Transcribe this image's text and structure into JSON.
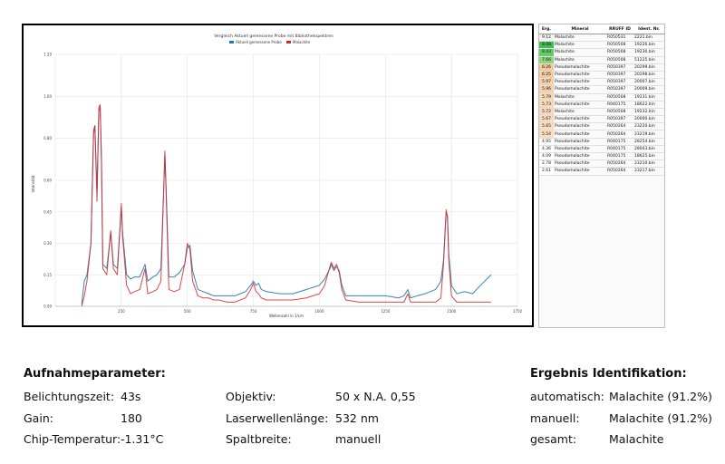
{
  "chart_data": {
    "type": "line",
    "title": "Vergleich Aktuell gemessene Probe mit Bibliothekspektren",
    "xlabel": "Wellenzahl in 1/cm",
    "ylabel": "Intensität",
    "xlim": [
      0,
      1750
    ],
    "ylim": [
      0,
      1.2
    ],
    "xticks": [
      0,
      250,
      500,
      750,
      1000,
      1250,
      1500,
      1750
    ],
    "yticks": [
      0,
      0.15,
      0.3,
      0.45,
      0.6,
      0.8,
      1.0,
      1.2
    ],
    "ytick_labels": [
      "0.00",
      "0.15",
      "0.30",
      "0.45",
      "0.60",
      "0.80",
      "1.00",
      "1.20"
    ],
    "grid": true,
    "legend_position": "top-center",
    "series": [
      {
        "name": "Aktuell gemessene Probe",
        "color": "#1f77b4",
        "points": [
          [
            100,
            0.01
          ],
          [
            110,
            0.12
          ],
          [
            120,
            0.15
          ],
          [
            135,
            0.3
          ],
          [
            145,
            0.82
          ],
          [
            150,
            0.86
          ],
          [
            158,
            0.55
          ],
          [
            165,
            0.93
          ],
          [
            170,
            0.95
          ],
          [
            175,
            0.7
          ],
          [
            180,
            0.2
          ],
          [
            195,
            0.18
          ],
          [
            210,
            0.35
          ],
          [
            220,
            0.2
          ],
          [
            235,
            0.18
          ],
          [
            250,
            0.47
          ],
          [
            255,
            0.35
          ],
          [
            270,
            0.15
          ],
          [
            285,
            0.13
          ],
          [
            300,
            0.14
          ],
          [
            320,
            0.14
          ],
          [
            340,
            0.2
          ],
          [
            350,
            0.12
          ],
          [
            370,
            0.14
          ],
          [
            385,
            0.15
          ],
          [
            400,
            0.18
          ],
          [
            415,
            0.72
          ],
          [
            420,
            0.55
          ],
          [
            430,
            0.14
          ],
          [
            450,
            0.14
          ],
          [
            470,
            0.16
          ],
          [
            490,
            0.2
          ],
          [
            500,
            0.28
          ],
          [
            510,
            0.29
          ],
          [
            520,
            0.17
          ],
          [
            540,
            0.08
          ],
          [
            560,
            0.07
          ],
          [
            580,
            0.06
          ],
          [
            600,
            0.05
          ],
          [
            620,
            0.05
          ],
          [
            650,
            0.05
          ],
          [
            680,
            0.05
          ],
          [
            700,
            0.06
          ],
          [
            720,
            0.07
          ],
          [
            740,
            0.1
          ],
          [
            750,
            0.12
          ],
          [
            760,
            0.1
          ],
          [
            770,
            0.11
          ],
          [
            780,
            0.08
          ],
          [
            800,
            0.07
          ],
          [
            850,
            0.06
          ],
          [
            900,
            0.06
          ],
          [
            950,
            0.08
          ],
          [
            1000,
            0.1
          ],
          [
            1020,
            0.13
          ],
          [
            1040,
            0.18
          ],
          [
            1045,
            0.2
          ],
          [
            1055,
            0.17
          ],
          [
            1065,
            0.19
          ],
          [
            1075,
            0.17
          ],
          [
            1085,
            0.1
          ],
          [
            1100,
            0.05
          ],
          [
            1150,
            0.05
          ],
          [
            1200,
            0.05
          ],
          [
            1250,
            0.05
          ],
          [
            1300,
            0.04
          ],
          [
            1320,
            0.05
          ],
          [
            1335,
            0.08
          ],
          [
            1345,
            0.04
          ],
          [
            1370,
            0.05
          ],
          [
            1400,
            0.06
          ],
          [
            1420,
            0.07
          ],
          [
            1440,
            0.08
          ],
          [
            1460,
            0.12
          ],
          [
            1470,
            0.22
          ],
          [
            1480,
            0.45
          ],
          [
            1485,
            0.43
          ],
          [
            1490,
            0.25
          ],
          [
            1500,
            0.1
          ],
          [
            1520,
            0.06
          ],
          [
            1550,
            0.07
          ],
          [
            1580,
            0.06
          ],
          [
            1610,
            0.1
          ],
          [
            1650,
            0.15
          ]
        ]
      },
      {
        "name": "Malachite",
        "color": "#d62728",
        "points": [
          [
            100,
            0.0
          ],
          [
            110,
            0.05
          ],
          [
            120,
            0.12
          ],
          [
            135,
            0.3
          ],
          [
            145,
            0.84
          ],
          [
            150,
            0.86
          ],
          [
            158,
            0.5
          ],
          [
            165,
            0.95
          ],
          [
            170,
            0.96
          ],
          [
            175,
            0.68
          ],
          [
            180,
            0.18
          ],
          [
            195,
            0.15
          ],
          [
            210,
            0.36
          ],
          [
            220,
            0.18
          ],
          [
            235,
            0.15
          ],
          [
            250,
            0.49
          ],
          [
            255,
            0.33
          ],
          [
            270,
            0.1
          ],
          [
            285,
            0.06
          ],
          [
            300,
            0.07
          ],
          [
            320,
            0.08
          ],
          [
            340,
            0.18
          ],
          [
            350,
            0.06
          ],
          [
            370,
            0.07
          ],
          [
            385,
            0.08
          ],
          [
            400,
            0.12
          ],
          [
            415,
            0.74
          ],
          [
            420,
            0.53
          ],
          [
            430,
            0.08
          ],
          [
            450,
            0.07
          ],
          [
            470,
            0.08
          ],
          [
            490,
            0.2
          ],
          [
            500,
            0.3
          ],
          [
            510,
            0.27
          ],
          [
            520,
            0.12
          ],
          [
            540,
            0.05
          ],
          [
            560,
            0.04
          ],
          [
            580,
            0.04
          ],
          [
            600,
            0.03
          ],
          [
            620,
            0.03
          ],
          [
            650,
            0.02
          ],
          [
            680,
            0.02
          ],
          [
            700,
            0.03
          ],
          [
            720,
            0.04
          ],
          [
            740,
            0.08
          ],
          [
            750,
            0.11
          ],
          [
            760,
            0.07
          ],
          [
            770,
            0.06
          ],
          [
            780,
            0.04
          ],
          [
            800,
            0.03
          ],
          [
            850,
            0.03
          ],
          [
            900,
            0.03
          ],
          [
            950,
            0.04
          ],
          [
            1000,
            0.06
          ],
          [
            1020,
            0.1
          ],
          [
            1040,
            0.19
          ],
          [
            1045,
            0.21
          ],
          [
            1055,
            0.18
          ],
          [
            1065,
            0.2
          ],
          [
            1075,
            0.16
          ],
          [
            1085,
            0.08
          ],
          [
            1100,
            0.03
          ],
          [
            1150,
            0.02
          ],
          [
            1200,
            0.02
          ],
          [
            1250,
            0.02
          ],
          [
            1300,
            0.02
          ],
          [
            1320,
            0.02
          ],
          [
            1335,
            0.06
          ],
          [
            1345,
            0.02
          ],
          [
            1370,
            0.02
          ],
          [
            1400,
            0.02
          ],
          [
            1420,
            0.02
          ],
          [
            1440,
            0.02
          ],
          [
            1460,
            0.04
          ],
          [
            1470,
            0.2
          ],
          [
            1480,
            0.46
          ],
          [
            1485,
            0.42
          ],
          [
            1490,
            0.22
          ],
          [
            1500,
            0.05
          ],
          [
            1520,
            0.02
          ],
          [
            1550,
            0.02
          ],
          [
            1580,
            0.02
          ],
          [
            1610,
            0.02
          ],
          [
            1650,
            0.02
          ]
        ]
      }
    ]
  },
  "hits_table": {
    "columns": [
      "Erg.",
      "Mineral",
      "RRUFF ID",
      "Ident. Nr."
    ],
    "rows": [
      {
        "score": "9.12",
        "mineral": "Malachite",
        "rruff_id": "R050531",
        "ident": "2221.bin",
        "color": "#f2f2f2"
      },
      {
        "score": "8.08",
        "mineral": "Malachite",
        "rruff_id": "R050508",
        "ident": "19226.bin",
        "color": "#3fbf4f"
      },
      {
        "score": "8.43",
        "mineral": "Malachite",
        "rruff_id": "R050508",
        "ident": "19230.bin",
        "color": "#63cc66"
      },
      {
        "score": "7.66",
        "mineral": "Malachite",
        "rruff_id": "R050508",
        "ident": "51225.bin",
        "color": "#8fd67a"
      },
      {
        "score": "6.26",
        "mineral": "Pseudomalachite",
        "rruff_id": "R050397",
        "ident": "20299.bin",
        "color": "#f6c79a"
      },
      {
        "score": "6.25",
        "mineral": "Pseudomalachite",
        "rruff_id": "R050397",
        "ident": "20298.bin",
        "color": "#f6c99e"
      },
      {
        "score": "5.97",
        "mineral": "Pseudomalachite",
        "rruff_id": "R050397",
        "ident": "20007.bin",
        "color": "#f7cfa8"
      },
      {
        "score": "5.96",
        "mineral": "Pseudomalachite",
        "rruff_id": "R050397",
        "ident": "20009.bin",
        "color": "#f7d1ac"
      },
      {
        "score": "5.79",
        "mineral": "Malachite",
        "rruff_id": "R050508",
        "ident": "19231.bin",
        "color": "#f8d5b3"
      },
      {
        "score": "5.73",
        "mineral": "Pseudomalachite",
        "rruff_id": "R040175",
        "ident": "18622.bin",
        "color": "#f8d7b7"
      },
      {
        "score": "5.72",
        "mineral": "Malachite",
        "rruff_id": "R050508",
        "ident": "19232.bin",
        "color": "#f8d8b9"
      },
      {
        "score": "5.67",
        "mineral": "Pseudomalachite",
        "rruff_id": "R050397",
        "ident": "20000.bin",
        "color": "#f9dabc"
      },
      {
        "score": "5.65",
        "mineral": "Pseudomalachite",
        "rruff_id": "R050264",
        "ident": "23220.bin",
        "color": "#f9dbbe"
      },
      {
        "score": "5.54",
        "mineral": "Pseudomalachite",
        "rruff_id": "R050264",
        "ident": "23219.bin",
        "color": "#f9ddc2"
      },
      {
        "score": "4.95",
        "mineral": "Pseudomalachite",
        "rruff_id": "R040175",
        "ident": "28254.bin",
        "color": "#ffffff"
      },
      {
        "score": "4.36",
        "mineral": "Pseudomalachite",
        "rruff_id": "R040175",
        "ident": "28043.bin",
        "color": "#ffffff"
      },
      {
        "score": "4.09",
        "mineral": "Pseudomalachite",
        "rruff_id": "R040175",
        "ident": "18625.bin",
        "color": "#ffffff"
      },
      {
        "score": "2.78",
        "mineral": "Pseudomalachite",
        "rruff_id": "R050264",
        "ident": "23210.bin",
        "color": "#ffffff"
      },
      {
        "score": "2.61",
        "mineral": "Pseudomalachite",
        "rruff_id": "R050264",
        "ident": "23217.bin",
        "color": "#ffffff"
      }
    ]
  },
  "aufnahme": {
    "title": "Aufnahmeparameter:",
    "belichtung_label": "Belichtungszeit:",
    "belichtung_value": "43s",
    "gain_label": "Gain:",
    "gain_value": "180",
    "chip_label": "Chip-Temperatur:",
    "chip_value": "-1.31°C",
    "objektiv_label": "Objektiv:",
    "objektiv_value": "50 x N.A. 0,55",
    "laser_label": "Laserwellenlänge:",
    "laser_value": "532 nm",
    "spalt_label": "Spaltbreite:",
    "spalt_value": "manuell"
  },
  "ergebnis": {
    "title": "Ergebnis Identifikation:",
    "auto_label": "automatisch:",
    "auto_value": "Malachite (91.2%)",
    "manuell_label": "manuell:",
    "manuell_value": "Malachite (91.2%)",
    "gesamt_label": "gesamt:",
    "gesamt_value": "Malachite"
  }
}
